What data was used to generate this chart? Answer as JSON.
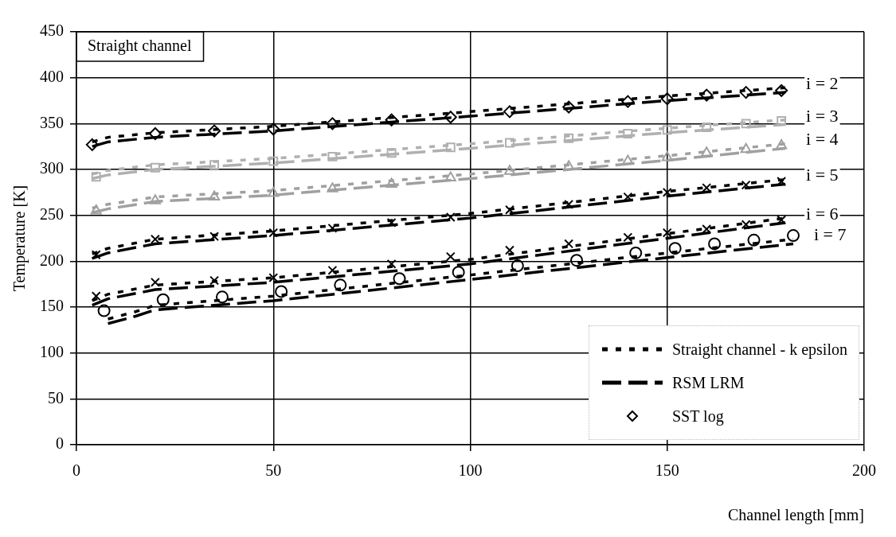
{
  "chart_data": {
    "type": "line",
    "xlabel": "Channel length [mm]",
    "ylabel": "Temperature [K]",
    "xlim": [
      0,
      200
    ],
    "xticks": [
      0,
      50,
      100,
      150,
      200
    ],
    "ylim": [
      0,
      450
    ],
    "yticks": [
      0,
      50,
      100,
      150,
      200,
      250,
      300,
      350,
      400,
      450
    ],
    "grid": true,
    "legend": "bottom right",
    "annotations": [
      "Straight channel",
      "i = 2",
      "i = 3",
      "i = 4",
      "i = 5",
      "i = 6",
      "i = 7"
    ],
    "series": [
      {
        "name": "Straight channel - k epsilon",
        "color": "#000000",
        "line_style": "dotted",
        "marker": "none",
        "x": [
          4,
          8,
          20,
          50,
          100,
          150,
          180
        ],
        "values": [
          330,
          335,
          340,
          347,
          363,
          380,
          389
        ]
      },
      {
        "name": "RSM LRM",
        "color": "#000000",
        "line_style": "dashed",
        "marker": "none",
        "x": [
          4,
          8,
          20,
          50,
          100,
          150,
          180
        ],
        "values": [
          325,
          330,
          335,
          342,
          358,
          375,
          384
        ]
      },
      {
        "name": "SST log",
        "type": "scatter",
        "color": "#000000",
        "marker": "diamond",
        "x": [
          4,
          20,
          35,
          50,
          65,
          80,
          95,
          110,
          125,
          140,
          150,
          160,
          170,
          179
        ],
        "values": [
          327,
          339,
          342,
          344,
          350,
          354,
          357,
          363,
          368,
          374,
          377,
          381,
          384,
          386
        ]
      },
      {
        "color": "#b0b0b0",
        "line_style": "dotted",
        "marker": "none",
        "x": [
          4,
          8,
          20,
          50,
          100,
          150,
          180
        ],
        "values": [
          295,
          299,
          305,
          312,
          328,
          345,
          354
        ]
      },
      {
        "color": "#b0b0b0",
        "line_style": "dashed",
        "marker": "none",
        "x": [
          4,
          8,
          20,
          50,
          100,
          150,
          180
        ],
        "values": [
          290,
          294,
          300,
          307,
          323,
          340,
          349
        ]
      },
      {
        "type": "scatter",
        "color": "#b0b0b0",
        "marker": "square",
        "x": [
          5,
          20,
          35,
          50,
          65,
          80,
          95,
          110,
          125,
          140,
          150,
          160,
          170,
          179
        ],
        "values": [
          292,
          302,
          305,
          309,
          314,
          318,
          324,
          329,
          334,
          339,
          343,
          346,
          350,
          353
        ]
      },
      {
        "color": "#a0a0a0",
        "line_style": "dotted",
        "marker": "none",
        "x": [
          4,
          8,
          20,
          50,
          100,
          150,
          180
        ],
        "values": [
          258,
          262,
          270,
          277,
          295,
          315,
          328
        ]
      },
      {
        "color": "#a0a0a0",
        "line_style": "dashed",
        "marker": "none",
        "x": [
          4,
          8,
          20,
          50,
          100,
          150,
          180
        ],
        "values": [
          253,
          257,
          265,
          272,
          290,
          310,
          323
        ]
      },
      {
        "type": "scatter",
        "color": "#a0a0a0",
        "marker": "triangle",
        "x": [
          5,
          20,
          35,
          50,
          65,
          80,
          95,
          110,
          125,
          140,
          150,
          160,
          170,
          179
        ],
        "values": [
          255,
          266,
          270,
          274,
          279,
          284,
          291,
          298,
          303,
          309,
          313,
          318,
          322,
          326
        ]
      },
      {
        "color": "#000000",
        "line_style": "dotted",
        "marker": "none",
        "x": [
          4,
          8,
          20,
          50,
          100,
          150,
          180
        ],
        "values": [
          208,
          214,
          224,
          233,
          252,
          276,
          289
        ]
      },
      {
        "color": "#000000",
        "line_style": "dashed",
        "marker": "none",
        "x": [
          4,
          8,
          20,
          50,
          100,
          150,
          180
        ],
        "values": [
          203,
          209,
          219,
          228,
          247,
          271,
          284
        ]
      },
      {
        "type": "scatter",
        "color": "#000000",
        "marker": "cross",
        "x": [
          5,
          20,
          35,
          50,
          65,
          80,
          95,
          110,
          125,
          140,
          150,
          160,
          170,
          179
        ],
        "values": [
          207,
          224,
          227,
          231,
          236,
          242,
          248,
          256,
          262,
          270,
          275,
          280,
          283,
          287
        ]
      },
      {
        "color": "#000000",
        "line_style": "dotted",
        "marker": "none",
        "x": [
          4,
          8,
          20,
          50,
          100,
          150,
          180
        ],
        "values": [
          157,
          164,
          174,
          182,
          202,
          230,
          247
        ]
      },
      {
        "color": "#000000",
        "line_style": "dashed",
        "marker": "none",
        "x": [
          4,
          8,
          20,
          50,
          100,
          150,
          180
        ],
        "values": [
          152,
          159,
          169,
          177,
          197,
          225,
          242
        ]
      },
      {
        "type": "scatter",
        "color": "#000000",
        "marker": "cross",
        "x": [
          5,
          20,
          35,
          50,
          65,
          80,
          95,
          110,
          125,
          140,
          150,
          160,
          170,
          179
        ],
        "values": [
          162,
          177,
          179,
          182,
          190,
          197,
          205,
          212,
          219,
          226,
          231,
          235,
          240,
          245
        ]
      },
      {
        "color": "#000000",
        "line_style": "dotted",
        "marker": "none",
        "x": [
          8,
          15,
          20,
          50,
          100,
          150,
          182
        ],
        "values": [
          137,
          145,
          152,
          162,
          185,
          209,
          224
        ]
      },
      {
        "color": "#000000",
        "line_style": "dashed",
        "marker": "none",
        "x": [
          8,
          15,
          20,
          50,
          100,
          150,
          182
        ],
        "values": [
          132,
          140,
          147,
          157,
          180,
          204,
          219
        ]
      },
      {
        "type": "scatter",
        "color": "#000000",
        "marker": "circle",
        "x": [
          7,
          22,
          37,
          52,
          67,
          82,
          97,
          112,
          127,
          142,
          152,
          162,
          172,
          182
        ],
        "values": [
          146,
          158,
          161,
          167,
          174,
          181,
          188,
          195,
          201,
          209,
          214,
          219,
          223,
          228
        ]
      }
    ]
  }
}
